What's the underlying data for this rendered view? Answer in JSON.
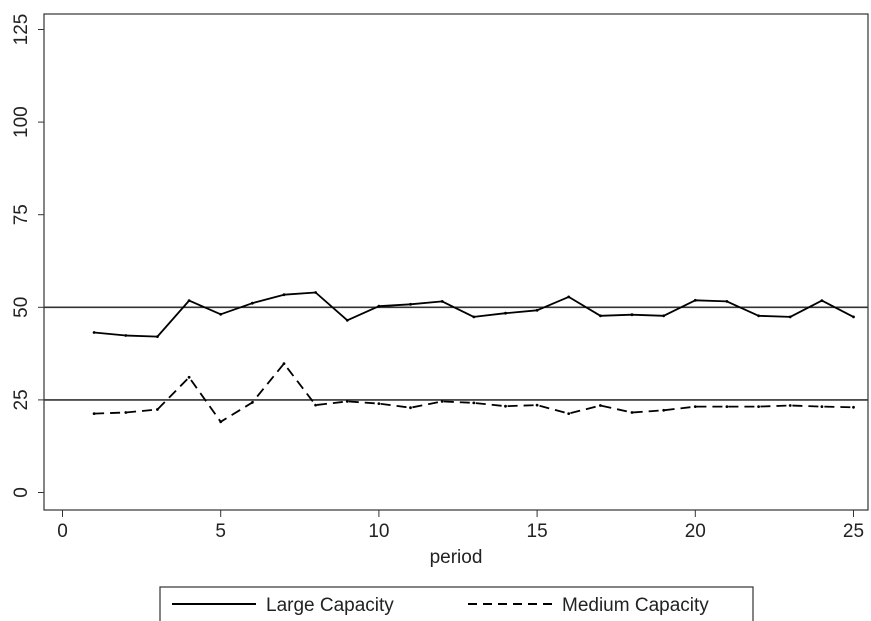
{
  "chart_data": {
    "type": "line",
    "title": "",
    "xlabel": "period",
    "ylabel": "",
    "xlim": [
      0,
      25
    ],
    "ylim": [
      0,
      125
    ],
    "xticks": [
      0,
      5,
      10,
      15,
      20,
      25
    ],
    "yticks": [
      0,
      25,
      50,
      75,
      100,
      125
    ],
    "x": [
      1,
      2,
      3,
      4,
      5,
      6,
      7,
      8,
      9,
      10,
      11,
      12,
      13,
      14,
      15,
      16,
      17,
      18,
      19,
      20,
      21,
      22,
      23,
      24,
      25
    ],
    "series": [
      {
        "name": "Large Capacity",
        "line_style": "solid",
        "color": "#000000",
        "values": [
          43.2,
          42.4,
          42.1,
          51.8,
          48.1,
          51.1,
          53.4,
          54.0,
          46.5,
          50.3,
          50.8,
          51.6,
          47.4,
          48.4,
          49.2,
          52.8,
          47.7,
          48.0,
          47.7,
          51.9,
          51.6,
          47.7,
          47.4,
          51.8,
          47.4
        ]
      },
      {
        "name": "Medium Capacity",
        "line_style": "dashed",
        "color": "#000000",
        "values": [
          21.3,
          21.6,
          22.4,
          31.1,
          19.1,
          24.3,
          34.8,
          23.6,
          24.6,
          24.0,
          22.9,
          24.6,
          24.2,
          23.3,
          23.6,
          21.3,
          23.5,
          21.6,
          22.2,
          23.2,
          23.2,
          23.2,
          23.5,
          23.2,
          23.0
        ]
      }
    ],
    "reference_lines": [
      {
        "axis": "y",
        "value": 50,
        "color": "#333333"
      },
      {
        "axis": "y",
        "value": 25,
        "color": "#333333"
      }
    ],
    "grid": false,
    "legend": {
      "position": "bottom",
      "entries": [
        "Large Capacity",
        "Medium Capacity"
      ]
    }
  }
}
